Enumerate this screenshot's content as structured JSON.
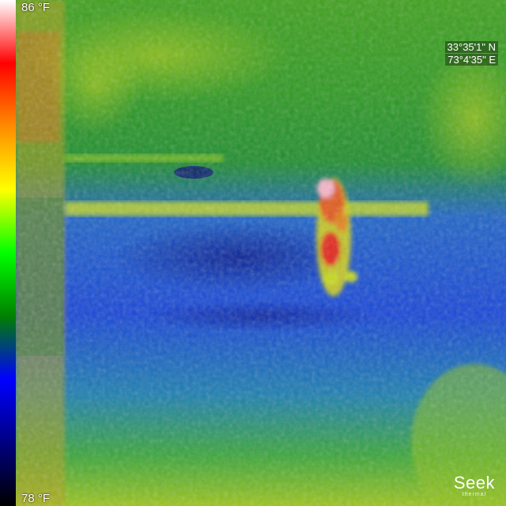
{
  "scale": {
    "max_label": "86 °F",
    "min_label": "78 °F",
    "palette": [
      "#ffffff",
      "#ff0000",
      "#ff8c00",
      "#ffff00",
      "#00ff00",
      "#008000",
      "#0000ff",
      "#000080",
      "#000000"
    ]
  },
  "gps": {
    "latitude": "33°35'1\" N",
    "longitude": "73°4'35\" E"
  },
  "brand": {
    "name": "Seek",
    "sub": "thermal"
  },
  "icons": {
    "scale_bar": "color-scale-bar",
    "logo": "seek-thermal-logo"
  }
}
